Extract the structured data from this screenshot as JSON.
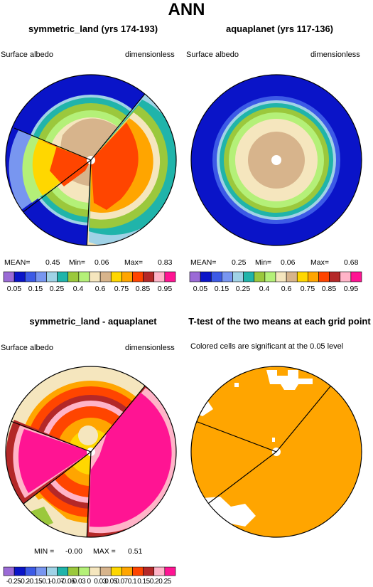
{
  "title": "ANN",
  "panels": [
    {
      "title": "symmetric_land (yrs 174-193)",
      "left": "Surface albedo",
      "right": "dimensionless"
    },
    {
      "title": "aquaplanet (yrs 117-136)",
      "left": "Surface albedo",
      "right": "dimensionless"
    },
    {
      "title": "symmetric_land - aquaplanet",
      "left": "Surface albedo",
      "right": "dimensionless"
    },
    {
      "title": "T-test of the two means at each grid point",
      "subtitle": "Colored cells are significant at the 0.05 level"
    }
  ],
  "stats": {
    "p1": {
      "mean_label": "MEAN=",
      "mean": "0.45",
      "min_label": "Min=",
      "min": "0.06",
      "max_label": "Max=",
      "max": "0.83"
    },
    "p2": {
      "mean_label": "MEAN=",
      "mean": "0.25",
      "min_label": "Min=",
      "min": "0.06",
      "max_label": "Max=",
      "max": "0.68"
    },
    "p3": {
      "min_label": "MIN =",
      "min": "-0.00",
      "max_label": "MAX =",
      "max": "0.51"
    }
  },
  "colorbar_top": {
    "colors": [
      "#9b6bd6",
      "#0a14c8",
      "#3c5ae6",
      "#7896f0",
      "#a0d2e6",
      "#20b4aa",
      "#9bc83c",
      "#b4f078",
      "#f5e6be",
      "#d7b48c",
      "#ffd700",
      "#ffa500",
      "#ff4500",
      "#b42828",
      "#ffb4c8",
      "#ff1493"
    ],
    "labels": [
      "0.05",
      "0.15",
      "0.25",
      "0.4",
      "0.6",
      "0.75",
      "0.85",
      "0.95"
    ]
  },
  "colorbar_bottom": {
    "colors": [
      "#9b6bd6",
      "#0a14c8",
      "#3c5ae6",
      "#7896f0",
      "#a0d2e6",
      "#20b4aa",
      "#9bc83c",
      "#b4f078",
      "#f5e6be",
      "#d7b48c",
      "#ffd700",
      "#ffa500",
      "#ff4500",
      "#b42828",
      "#ffb4c8",
      "#ff1493"
    ],
    "labels": [
      "-0.25",
      "-0.2",
      "-0.15",
      "-0.1",
      "-0.07",
      "-0.05",
      "-0.03",
      "0",
      "0.03",
      "0.05",
      "0.07",
      "0.1",
      "0.15",
      "0.2",
      "0.25"
    ]
  },
  "chart_data": [
    {
      "type": "heatmap",
      "title": "symmetric_land (yrs 174-193)",
      "variable": "Surface albedo",
      "units": "dimensionless",
      "mean": 0.45,
      "min": 0.06,
      "max": 0.83
    },
    {
      "type": "heatmap",
      "title": "aquaplanet (yrs 117-136)",
      "variable": "Surface albedo",
      "units": "dimensionless",
      "mean": 0.25,
      "min": 0.06,
      "max": 0.68
    },
    {
      "type": "heatmap",
      "title": "symmetric_land - aquaplanet",
      "variable": "Surface albedo",
      "units": "dimensionless",
      "min": -0.0,
      "max": 0.51
    },
    {
      "type": "heatmap",
      "title": "T-test of the two means at each grid point",
      "subtitle": "Colored cells are significant at the 0.05 level"
    }
  ],
  "colors": {
    "orange": "#ffa500",
    "pink": "#ff1493",
    "navy": "#0a14c8"
  }
}
